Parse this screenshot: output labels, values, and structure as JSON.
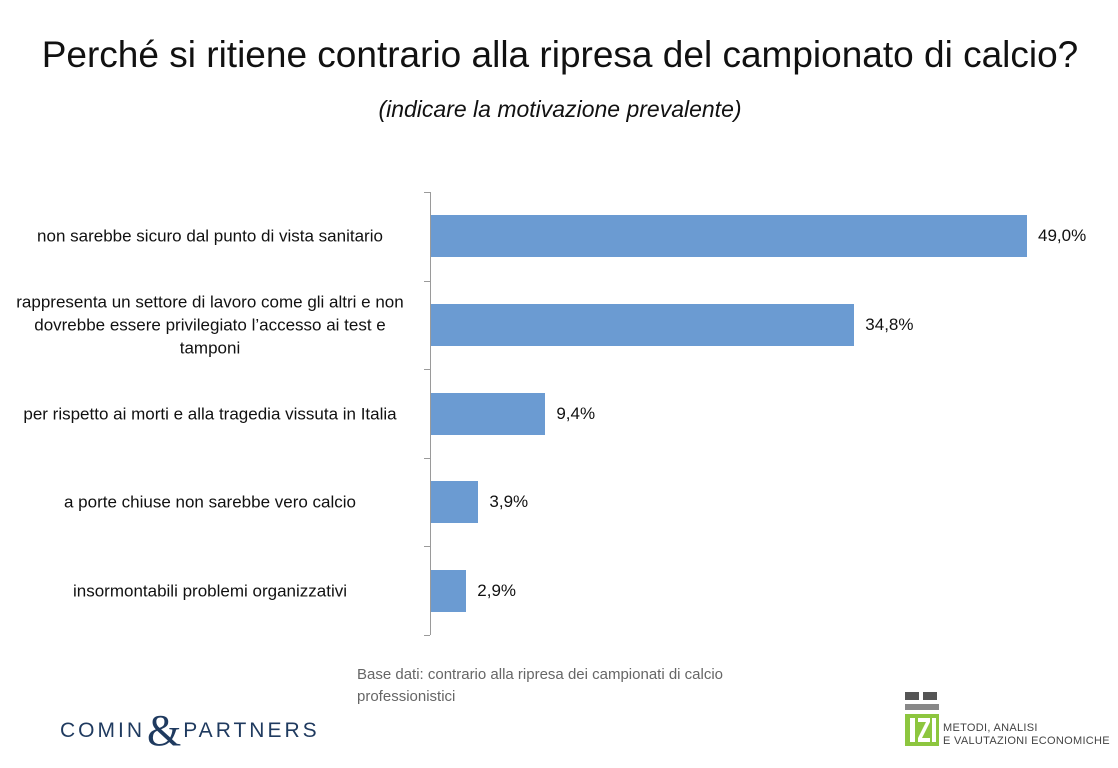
{
  "chart_data": {
    "type": "bar",
    "orientation": "horizontal",
    "title": "Perché si ritiene contrario alla ripresa del campionato di calcio?",
    "subtitle": "(indicare la motivazione prevalente)",
    "categories": [
      "non sarebbe sicuro dal punto di vista sanitario",
      "rappresenta un settore di lavoro come gli altri e non dovrebbe essere privilegiato l’accesso ai test e tamponi",
      "per rispetto ai morti e alla tragedia vissuta in Italia",
      "a porte chiuse non sarebbe vero calcio",
      "insormontabili problemi organizzativi"
    ],
    "values": [
      49.0,
      34.8,
      9.4,
      3.9,
      2.9
    ],
    "value_labels": [
      "49,0%",
      "34,8%",
      "9,4%",
      "3,9%",
      "2,9%"
    ],
    "color": "#6b9bd2",
    "note": "Base dati: contrario alla ripresa dei campionati di calcio professionistici"
  },
  "logos": {
    "left": [
      "COMIN",
      "&",
      "PARTNERS"
    ],
    "right": [
      "METODI, ANALISI",
      "E VALUTAZIONI ECONOMICHE"
    ]
  }
}
